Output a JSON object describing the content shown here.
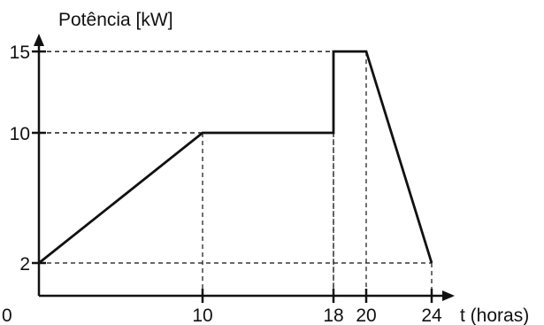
{
  "chart_data": {
    "type": "line",
    "ylabel": "Potência [kW]",
    "xlabel": "t (horas)",
    "x_ticks": [
      10,
      18,
      20,
      24
    ],
    "y_ticks": [
      2,
      10,
      15
    ],
    "origin_label": "0",
    "xlim": [
      0,
      24
    ],
    "ylim": [
      0,
      15
    ],
    "grid": false,
    "series": [
      {
        "x": [
          0,
          10,
          18,
          18,
          20,
          24
        ],
        "y": [
          2,
          10,
          10,
          15,
          15,
          2
        ]
      }
    ],
    "guides": [
      {
        "x": 10,
        "y": 10
      },
      {
        "x": 18,
        "y": 10
      },
      {
        "x": 18,
        "y": 15
      },
      {
        "x": 20,
        "y": 15
      },
      {
        "x": 24,
        "y": 2
      }
    ]
  }
}
